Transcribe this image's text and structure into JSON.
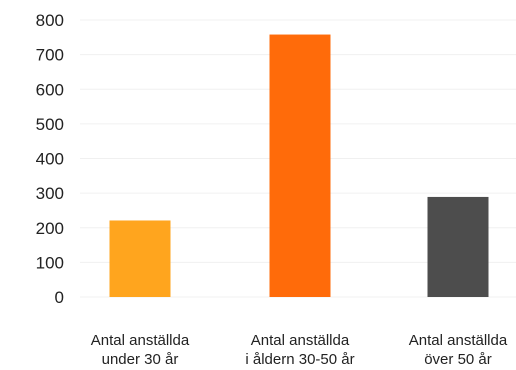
{
  "chart_data": {
    "type": "bar",
    "categories": [
      [
        "Antal anställda",
        "under 30 år"
      ],
      [
        "Antal anställda",
        "i åldern 30-50 år"
      ],
      [
        "Antal anställda",
        "över 50 år"
      ]
    ],
    "values": [
      221,
      758,
      289
    ],
    "colors": [
      "#ffa51e",
      "#ff6b0a",
      "#4d4d4d"
    ],
    "yticks": [
      "0",
      "100",
      "200",
      "300",
      "400",
      "500",
      "600",
      "700",
      "800"
    ],
    "ylim": [
      0,
      800
    ],
    "grid": true,
    "legend": "none"
  }
}
